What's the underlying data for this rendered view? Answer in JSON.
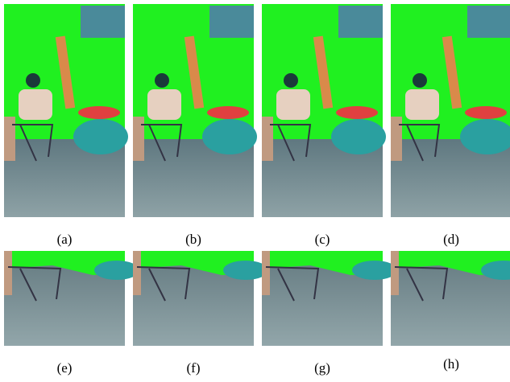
{
  "figure": {
    "panels": [
      {
        "caption": "(a)"
      },
      {
        "caption": "(b)"
      },
      {
        "caption": "(c)"
      },
      {
        "caption": "(d)"
      },
      {
        "caption": "(e)"
      },
      {
        "caption": "(f)"
      },
      {
        "caption": "(g)"
      },
      {
        "caption": "(h)"
      }
    ]
  }
}
